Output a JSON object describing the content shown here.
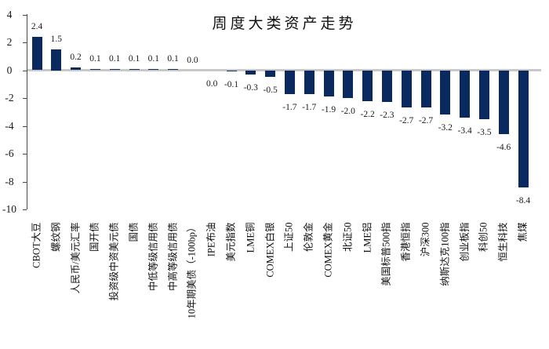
{
  "chart_data": {
    "type": "bar",
    "title": "周度大类资产走势",
    "categories": [
      "CBOT大豆",
      "螺纹钢",
      "人民币/美元汇率",
      "国开债",
      "投资级中资美元债",
      "国债",
      "中低等级信用债",
      "中高等级信用债",
      "10年期美债（-100bp）",
      "IPE布油",
      "美元指数",
      "LME铜",
      "COMEX白银",
      "上证50",
      "伦敦金",
      "COMEX黄金",
      "北证50",
      "LME铝",
      "美国标普500指",
      "香港恒指",
      "沪深300",
      "纳斯达克100指",
      "创业板指",
      "科创50",
      "恒生科技",
      "焦煤"
    ],
    "values": [
      2.4,
      1.5,
      0.2,
      0.1,
      0.1,
      0.1,
      0.1,
      0.1,
      0.0,
      0.0,
      -0.1,
      -0.3,
      -0.5,
      -1.7,
      -1.7,
      -1.9,
      -2.0,
      -2.2,
      -2.3,
      -2.7,
      -2.7,
      -3.2,
      -3.4,
      -3.5,
      -4.6,
      -8.4
    ],
    "bar_labels": [
      "2.4",
      "1.5",
      "0.2",
      "0.1",
      "0.1",
      "0.1",
      "0.1",
      "0.1",
      "0.0",
      "0.0",
      "-0.1",
      "-0.3",
      "-0.5",
      "-1.7",
      "-1.7",
      "-1.9",
      "-2.0",
      "-2.2",
      "-2.3",
      "-2.7",
      "-2.7",
      "-3.2",
      "-3.4",
      "-3.5",
      "-4.6",
      "-8.4"
    ],
    "bar_label_sides": [
      "above",
      "above",
      "above",
      "above",
      "above",
      "above",
      "above",
      "above",
      "above",
      "below",
      "below",
      "below",
      "below",
      "below",
      "below",
      "below",
      "below",
      "below",
      "below",
      "below",
      "below",
      "below",
      "below",
      "below",
      "below",
      "below"
    ],
    "xlabel": "",
    "ylabel": "",
    "ylim": [
      -10,
      4
    ],
    "yticks": [
      4,
      2,
      0,
      -2,
      -4,
      -6,
      -8,
      -10
    ],
    "grid": "zero-line-only",
    "legend": "none",
    "colors": {
      "bar": "#0a2a5f",
      "zero_line": "#c8c8c8",
      "axis": "#4a4a4a",
      "text": "#111111"
    }
  }
}
